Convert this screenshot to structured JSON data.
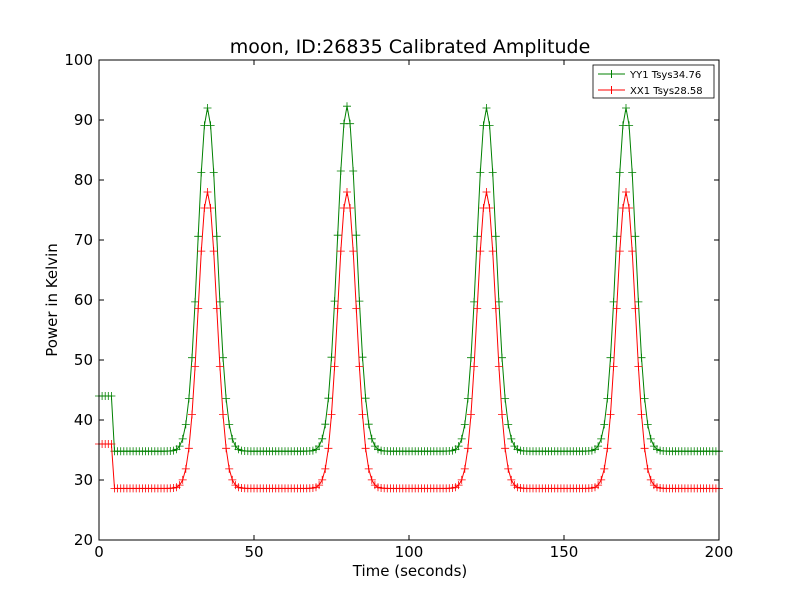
{
  "chart_data": {
    "type": "line",
    "title": "moon, ID:26835 Calibrated Amplitude",
    "xlabel": "Time (seconds)",
    "ylabel": "Power in Kelvin",
    "xlim": [
      0,
      200
    ],
    "ylim": [
      20,
      100
    ],
    "xticks": [
      "0",
      "50",
      "100",
      "150",
      "200"
    ],
    "yticks": [
      "20",
      "30",
      "40",
      "50",
      "60",
      "70",
      "80",
      "90",
      "100"
    ],
    "grid": false,
    "legend_position": "top-right",
    "sample_step_seconds": 1,
    "series": [
      {
        "name": "YY1 Tsys34.76",
        "color": "#008000",
        "marker": "+",
        "segments": [
          {
            "x_start": 0,
            "x_end": 5,
            "level": 44.0
          },
          {
            "x_start": 5,
            "x_end": 200,
            "level": 34.8
          }
        ],
        "peaks": [
          {
            "x": 35,
            "y": 92.0,
            "halfwidth": 3.1
          },
          {
            "x": 80,
            "y": 92.3,
            "halfwidth": 3.1
          },
          {
            "x": 125,
            "y": 92.0,
            "halfwidth": 3.1
          },
          {
            "x": 170,
            "y": 92.0,
            "halfwidth": 3.1
          }
        ]
      },
      {
        "name": "XX1 Tsys28.58",
        "color": "#ff0000",
        "marker": "+",
        "segments": [
          {
            "x_start": 0,
            "x_end": 5,
            "level": 36.0
          },
          {
            "x_start": 5,
            "x_end": 200,
            "level": 28.6
          }
        ],
        "peaks": [
          {
            "x": 35,
            "y": 78.0,
            "halfwidth": 3.0
          },
          {
            "x": 80,
            "y": 78.0,
            "halfwidth": 3.0
          },
          {
            "x": 125,
            "y": 78.0,
            "halfwidth": 3.0
          },
          {
            "x": 170,
            "y": 78.0,
            "halfwidth": 3.0
          }
        ]
      }
    ]
  }
}
